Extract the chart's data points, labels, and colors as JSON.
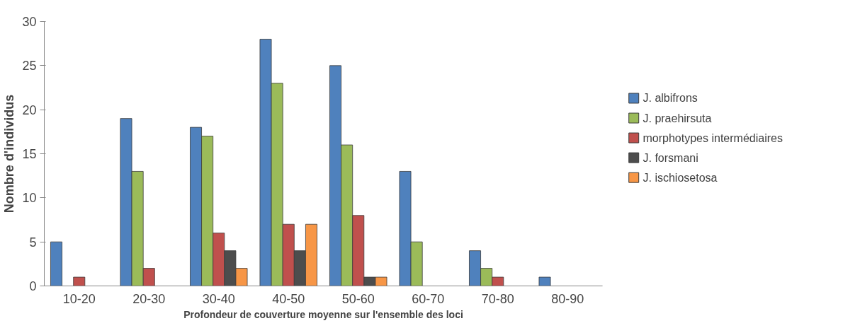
{
  "chart_data": {
    "type": "bar",
    "xlabel": "Profondeur de couverture moyenne sur l'ensemble des loci",
    "ylabel": "Nombre d'individus",
    "categories": [
      "10-20",
      "20-30",
      "30-40",
      "40-50",
      "50-60",
      "60-70",
      "70-80",
      "80-90"
    ],
    "series": [
      {
        "name": "J. albifrons",
        "color": "#4f81bd",
        "values": [
          5,
          19,
          18,
          28,
          25,
          13,
          4,
          1
        ]
      },
      {
        "name": "J. praehirsuta",
        "color": "#9bbb59",
        "values": [
          null,
          13,
          17,
          23,
          16,
          5,
          2,
          null
        ]
      },
      {
        "name": "morphotypes intermédiaires",
        "color": "#c0504d",
        "values": [
          1,
          2,
          6,
          7,
          8,
          null,
          1,
          null
        ]
      },
      {
        "name": "J. forsmani",
        "color": "#4d4d4d",
        "values": [
          null,
          null,
          4,
          4,
          1,
          null,
          null,
          null
        ]
      },
      {
        "name": "J. ischiosetosa",
        "color": "#f79646",
        "values": [
          null,
          null,
          2,
          7,
          1,
          null,
          null,
          null
        ]
      }
    ],
    "ylim": [
      0,
      30
    ],
    "yticks": [
      0,
      5,
      10,
      15,
      20,
      25,
      30
    ],
    "grid": false,
    "legend": "right"
  }
}
